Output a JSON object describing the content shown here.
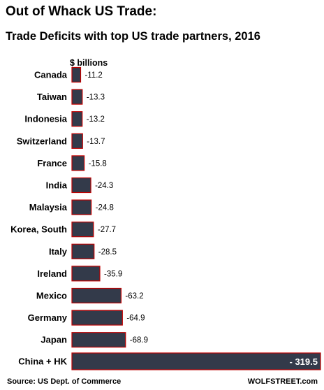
{
  "chart_data": {
    "type": "bar",
    "orientation": "horizontal",
    "title": "Out of Whack US Trade:",
    "subtitle": "Trade Deficits with top US trade partners, 2016",
    "unit_label": "$ billions",
    "categories": [
      "Canada",
      "Taiwan",
      "Indonesia",
      "Switzerland",
      "France",
      "India",
      "Malaysia",
      "Korea, South",
      "Italy",
      "Ireland",
      "Mexico",
      "Germany",
      "Japan",
      "China + HK"
    ],
    "values": [
      -11.2,
      -13.3,
      -13.2,
      -13.7,
      -15.8,
      -24.3,
      -24.8,
      -27.7,
      -28.5,
      -35.9,
      -63.2,
      -64.9,
      -68.9,
      -319.5
    ],
    "value_labels": [
      "-11.2",
      "-13.3",
      "-13.2",
      "-13.7",
      "-15.8",
      "-24.3",
      "-24.8",
      "-27.7",
      "-28.5",
      "-35.9",
      "-63.2",
      "-64.9",
      "-68.9",
      "- 319.5"
    ],
    "source": "Source: US Dept. of Commerce",
    "credit": "WOLFSTREET.com",
    "colors": {
      "bar_fill": "#333a4a",
      "bar_outline": "#c00000",
      "text": "#000000",
      "inside_label": "#ffffff"
    },
    "grid": false,
    "legend": "none"
  }
}
